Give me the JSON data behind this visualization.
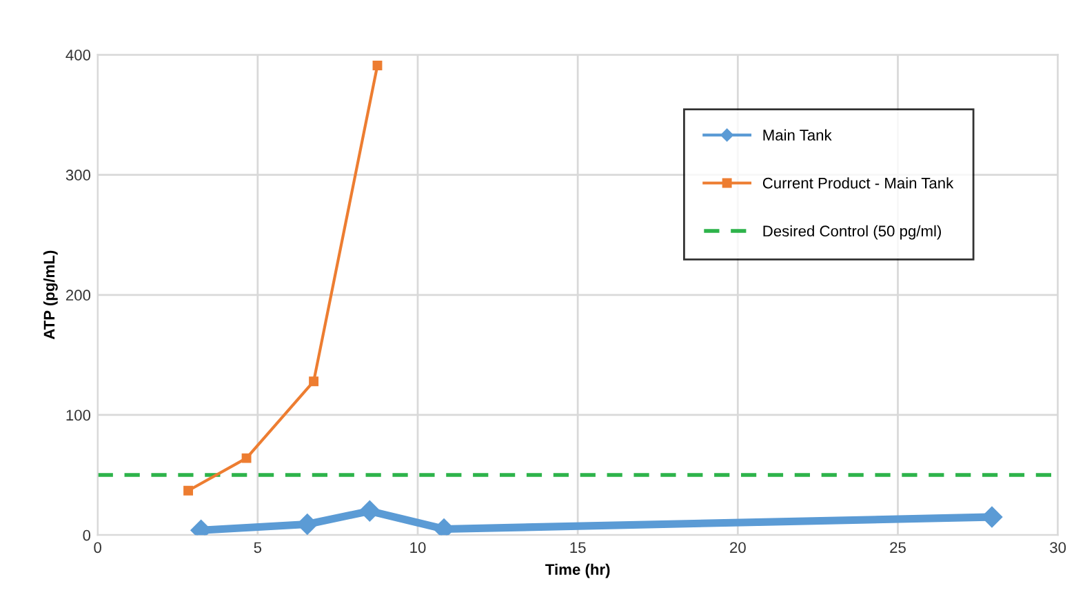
{
  "chart_data": {
    "type": "line",
    "xlabel": "Time (hr)",
    "ylabel": "ATP (pg/mL)",
    "xlim": [
      0,
      30
    ],
    "xticks": [
      0,
      5,
      10,
      15,
      20,
      25,
      30
    ],
    "ylim": [
      0,
      400
    ],
    "yticks": [
      0,
      100,
      200,
      300,
      400
    ],
    "grid": true,
    "legend": "right",
    "series": [
      {
        "name": "Main Tank",
        "color": "#5b9bd5",
        "marker": "diamond",
        "x": [
          3.23,
          6.55,
          8.5,
          10.82,
          27.94
        ],
        "values": [
          4,
          9,
          20,
          5,
          15
        ]
      },
      {
        "name": "Current Product - Main Tank",
        "color": "#ed7d31",
        "marker": "square",
        "x": [
          2.83,
          4.65,
          6.75,
          8.74
        ],
        "values": [
          37,
          64,
          128,
          391
        ]
      }
    ],
    "ref_lines": [
      {
        "axis": "y",
        "value": 50,
        "label": "Desired Control (50 pg/ml)",
        "color": "#2db34a",
        "line_style": "dashed"
      }
    ]
  }
}
